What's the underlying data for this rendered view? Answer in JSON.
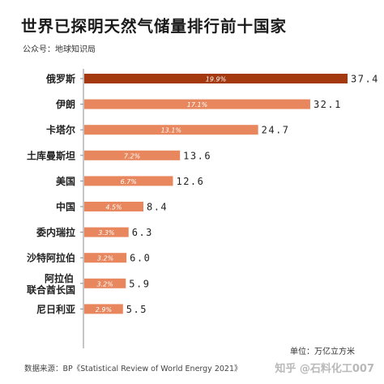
{
  "title": "世界已探明天然气储量排行前十国家",
  "subtitle": "公众号：地球知识局",
  "unit": "单位：万亿立方米",
  "source": "数据来源：BP《Statistical Review of World Energy 2021》",
  "watermark": "知乎 @石料化工007",
  "chart_data": {
    "type": "bar",
    "orientation": "horizontal",
    "categories": [
      "俄罗斯",
      "伊朗",
      "卡塔尔",
      "土库曼斯坦",
      "美国",
      "中国",
      "委内瑞拉",
      "沙特阿拉伯",
      "阿拉伯联合酋长国",
      "尼日利亚"
    ],
    "category_labels": [
      "俄罗斯",
      "伊朗",
      "卡塔尔",
      "土库曼斯坦",
      "美国",
      "中国",
      "委内瑞拉",
      "沙特阿拉伯",
      "阿拉伯\n联合酋长国",
      "尼日利亚"
    ],
    "values": [
      37.4,
      32.1,
      24.7,
      13.6,
      12.6,
      8.4,
      6.3,
      6.0,
      5.9,
      5.5
    ],
    "value_labels": [
      "37.4",
      "32.1",
      "24.7",
      "13.6",
      "12.6",
      "8.4",
      "6.3",
      "6.0",
      "5.9",
      "5.5"
    ],
    "share_labels": [
      "19.9%",
      "17.1%",
      "13.1%",
      "7.2%",
      "6.7%",
      "4.5%",
      "3.3%",
      "3.2%",
      "3.2%",
      "2.9%"
    ],
    "colors": {
      "top": "#a4380f",
      "rest": "#e8875e",
      "share_text": "#ffffff"
    },
    "xlim": [
      0,
      37.4
    ],
    "grid": false,
    "legend": "none"
  }
}
